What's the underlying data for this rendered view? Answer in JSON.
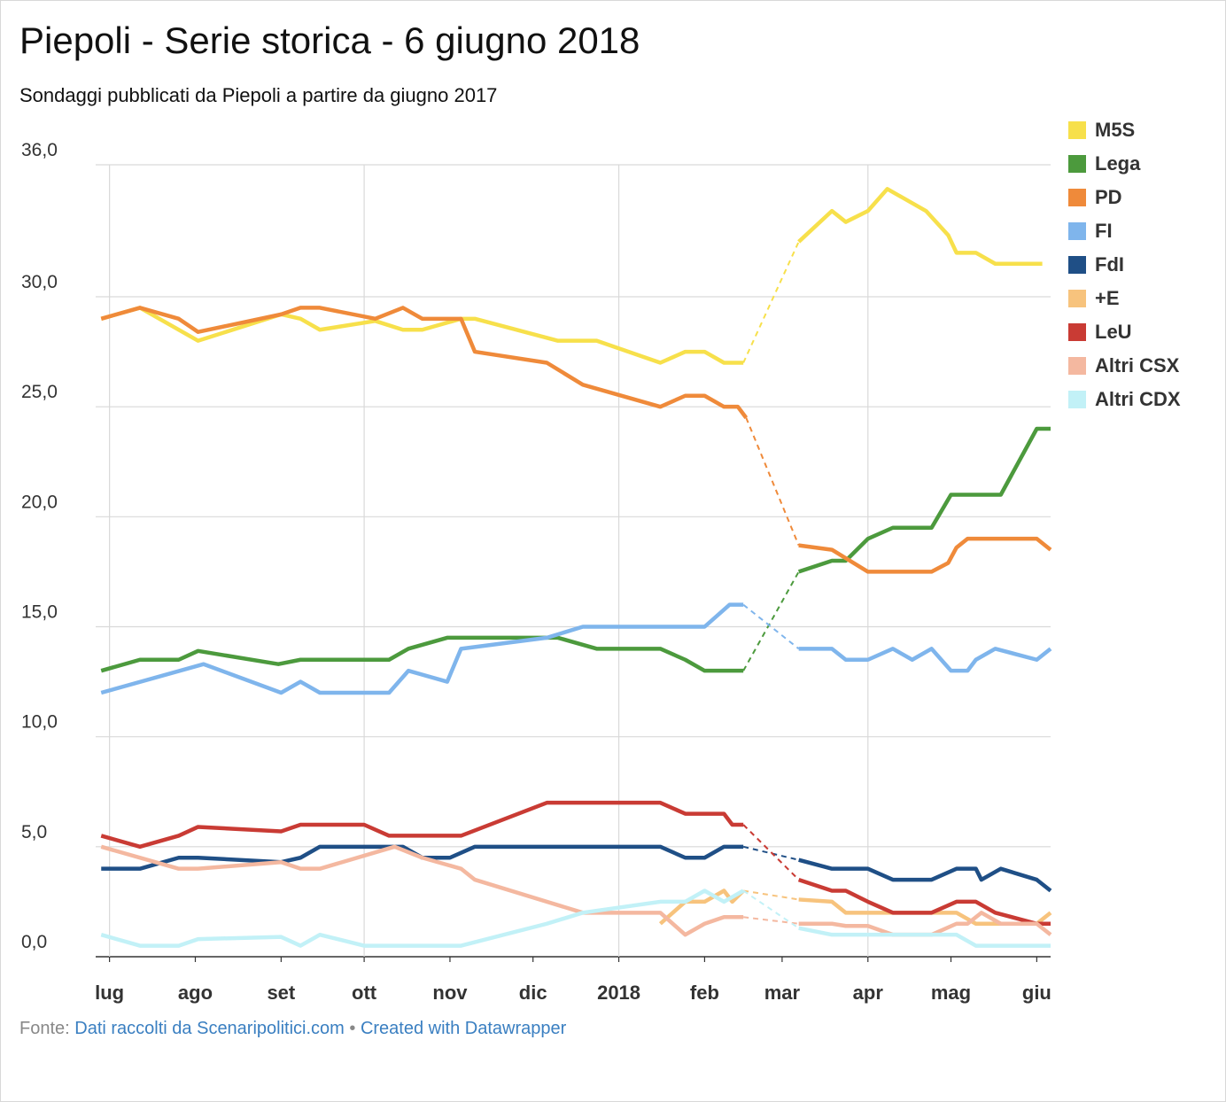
{
  "header": {
    "title": "Piepoli - Serie storica - 6 giugno 2018",
    "subtitle": "Sondaggi pubblicati da Piepoli a partire da giugno 2017"
  },
  "footer": {
    "prefix": "Fonte: ",
    "source": "Dati raccolti da Scenaripolitici.com",
    "separator": " • ",
    "credit": "Created with Datawrapper"
  },
  "chart_data": {
    "type": "line",
    "title": "Piepoli - Serie storica - 6 giugno 2018",
    "subtitle": "Sondaggi pubblicati da Piepoli a partire da giugno 2017",
    "xlabel": "",
    "ylabel": "",
    "ylim": [
      0,
      36
    ],
    "y_ticks": [
      {
        "value": 0,
        "label": "0,0"
      },
      {
        "value": 5,
        "label": "5,0"
      },
      {
        "value": 10,
        "label": "10,0"
      },
      {
        "value": 15,
        "label": "15,0"
      },
      {
        "value": 20,
        "label": "20,0"
      },
      {
        "value": 25,
        "label": "25,0"
      },
      {
        "value": 30,
        "label": "30,0"
      },
      {
        "value": 36,
        "label": "36,0"
      }
    ],
    "x_domain": [
      "2017-06-26",
      "2018-06-06"
    ],
    "x_ticks": [
      {
        "date": "2017-07-01",
        "label": "lug"
      },
      {
        "date": "2017-08-01",
        "label": "ago"
      },
      {
        "date": "2017-09-01",
        "label": "set"
      },
      {
        "date": "2017-10-01",
        "label": "ott"
      },
      {
        "date": "2017-11-01",
        "label": "nov"
      },
      {
        "date": "2017-12-01",
        "label": "dic"
      },
      {
        "date": "2018-01-01",
        "label": "2018"
      },
      {
        "date": "2018-02-01",
        "label": "feb"
      },
      {
        "date": "2018-03-01",
        "label": "mar"
      },
      {
        "date": "2018-04-01",
        "label": "apr"
      },
      {
        "date": "2018-05-01",
        "label": "mag"
      },
      {
        "date": "2018-06-01",
        "label": "giu"
      }
    ],
    "gap": {
      "from": "2018-02-16",
      "to": "2018-03-07",
      "style": "dashed"
    },
    "grid": true,
    "legend_position": "right",
    "series": [
      {
        "name": "M5S",
        "color": "#f7e04b",
        "points": [
          [
            "2017-06-28",
            29.0
          ],
          [
            "2017-07-12",
            29.5
          ],
          [
            "2017-08-02",
            28.0
          ],
          [
            "2017-09-01",
            29.2
          ],
          [
            "2017-09-08",
            29.0
          ],
          [
            "2017-09-15",
            28.5
          ],
          [
            "2017-10-05",
            28.9
          ],
          [
            "2017-10-15",
            28.5
          ],
          [
            "2017-10-22",
            28.5
          ],
          [
            "2017-11-05",
            29.0
          ],
          [
            "2017-11-10",
            29.0
          ],
          [
            "2017-12-10",
            28.0
          ],
          [
            "2017-12-24",
            28.0
          ],
          [
            "2018-01-16",
            27.0
          ],
          [
            "2018-01-25",
            27.5
          ],
          [
            "2018-02-01",
            27.5
          ],
          [
            "2018-02-08",
            27.0
          ],
          [
            "2018-02-15",
            27.0
          ],
          [
            "2018-03-07",
            32.5
          ],
          [
            "2018-03-19",
            33.9
          ],
          [
            "2018-03-24",
            33.4
          ],
          [
            "2018-04-01",
            33.9
          ],
          [
            "2018-04-08",
            34.9
          ],
          [
            "2018-04-22",
            33.9
          ],
          [
            "2018-04-30",
            32.8
          ],
          [
            "2018-05-03",
            32.0
          ],
          [
            "2018-05-10",
            32.0
          ],
          [
            "2018-05-17",
            31.5
          ],
          [
            "2018-06-03",
            31.5
          ]
        ]
      },
      {
        "name": "Lega",
        "color": "#4c9a3d",
        "points": [
          [
            "2017-06-28",
            13.0
          ],
          [
            "2017-07-12",
            13.5
          ],
          [
            "2017-07-26",
            13.5
          ],
          [
            "2017-08-02",
            13.9
          ],
          [
            "2017-08-31",
            13.3
          ],
          [
            "2017-09-08",
            13.5
          ],
          [
            "2017-09-29",
            13.5
          ],
          [
            "2017-10-10",
            13.5
          ],
          [
            "2017-10-17",
            14.0
          ],
          [
            "2017-10-31",
            14.5
          ],
          [
            "2017-12-10",
            14.5
          ],
          [
            "2017-12-24",
            14.0
          ],
          [
            "2018-01-16",
            14.0
          ],
          [
            "2018-01-25",
            13.5
          ],
          [
            "2018-02-01",
            13.0
          ],
          [
            "2018-02-15",
            13.0
          ],
          [
            "2018-03-07",
            17.5
          ],
          [
            "2018-03-19",
            18.0
          ],
          [
            "2018-03-24",
            18.0
          ],
          [
            "2018-04-01",
            19.0
          ],
          [
            "2018-04-10",
            19.5
          ],
          [
            "2018-04-24",
            19.5
          ],
          [
            "2018-05-01",
            21.0
          ],
          [
            "2018-05-19",
            21.0
          ],
          [
            "2018-06-01",
            24.0
          ],
          [
            "2018-06-06",
            24.0
          ]
        ]
      },
      {
        "name": "PD",
        "color": "#ef8a3a",
        "points": [
          [
            "2017-06-28",
            29.0
          ],
          [
            "2017-07-12",
            29.5
          ],
          [
            "2017-07-26",
            29.0
          ],
          [
            "2017-08-02",
            28.4
          ],
          [
            "2017-09-01",
            29.2
          ],
          [
            "2017-09-08",
            29.5
          ],
          [
            "2017-09-15",
            29.5
          ],
          [
            "2017-10-05",
            29.0
          ],
          [
            "2017-10-15",
            29.5
          ],
          [
            "2017-10-22",
            29.0
          ],
          [
            "2017-11-05",
            29.0
          ],
          [
            "2017-11-10",
            27.5
          ],
          [
            "2017-12-06",
            27.0
          ],
          [
            "2017-12-19",
            26.0
          ],
          [
            "2018-01-16",
            25.0
          ],
          [
            "2018-01-25",
            25.5
          ],
          [
            "2018-02-01",
            25.5
          ],
          [
            "2018-02-08",
            25.0
          ],
          [
            "2018-02-13",
            25.0
          ],
          [
            "2018-02-16",
            24.5
          ],
          [
            "2018-03-07",
            18.7
          ],
          [
            "2018-03-19",
            18.5
          ],
          [
            "2018-04-01",
            17.5
          ],
          [
            "2018-04-24",
            17.5
          ],
          [
            "2018-04-30",
            17.9
          ],
          [
            "2018-05-03",
            18.6
          ],
          [
            "2018-05-07",
            19.0
          ],
          [
            "2018-06-01",
            19.0
          ],
          [
            "2018-06-06",
            18.5
          ]
        ]
      },
      {
        "name": "FI",
        "color": "#7fb5ec",
        "points": [
          [
            "2017-06-28",
            12.0
          ],
          [
            "2017-08-04",
            13.3
          ],
          [
            "2017-09-01",
            12.0
          ],
          [
            "2017-09-08",
            12.5
          ],
          [
            "2017-09-15",
            12.0
          ],
          [
            "2017-10-10",
            12.0
          ],
          [
            "2017-10-17",
            13.0
          ],
          [
            "2017-10-31",
            12.5
          ],
          [
            "2017-11-05",
            14.0
          ],
          [
            "2017-12-06",
            14.5
          ],
          [
            "2017-12-19",
            15.0
          ],
          [
            "2018-02-01",
            15.0
          ],
          [
            "2018-02-10",
            16.0
          ],
          [
            "2018-02-15",
            16.0
          ],
          [
            "2018-03-07",
            14.0
          ],
          [
            "2018-03-19",
            14.0
          ],
          [
            "2018-03-24",
            13.5
          ],
          [
            "2018-04-01",
            13.5
          ],
          [
            "2018-04-10",
            14.0
          ],
          [
            "2018-04-17",
            13.5
          ],
          [
            "2018-04-24",
            14.0
          ],
          [
            "2018-05-01",
            13.0
          ],
          [
            "2018-05-07",
            13.0
          ],
          [
            "2018-05-10",
            13.5
          ],
          [
            "2018-05-17",
            14.0
          ],
          [
            "2018-06-01",
            13.5
          ],
          [
            "2018-06-06",
            14.0
          ]
        ]
      },
      {
        "name": "FdI",
        "color": "#1f4f86",
        "points": [
          [
            "2017-06-28",
            4.0
          ],
          [
            "2017-07-12",
            4.0
          ],
          [
            "2017-07-26",
            4.5
          ],
          [
            "2017-08-02",
            4.5
          ],
          [
            "2017-09-01",
            4.3
          ],
          [
            "2017-09-08",
            4.5
          ],
          [
            "2017-09-15",
            5.0
          ],
          [
            "2017-10-15",
            5.0
          ],
          [
            "2017-10-22",
            4.5
          ],
          [
            "2017-11-01",
            4.5
          ],
          [
            "2017-11-10",
            5.0
          ],
          [
            "2018-01-16",
            5.0
          ],
          [
            "2018-01-25",
            4.5
          ],
          [
            "2018-02-01",
            4.5
          ],
          [
            "2018-02-08",
            5.0
          ],
          [
            "2018-02-15",
            5.0
          ],
          [
            "2018-03-07",
            4.4
          ],
          [
            "2018-03-19",
            4.0
          ],
          [
            "2018-04-01",
            4.0
          ],
          [
            "2018-04-10",
            3.5
          ],
          [
            "2018-04-24",
            3.5
          ],
          [
            "2018-05-03",
            4.0
          ],
          [
            "2018-05-10",
            4.0
          ],
          [
            "2018-05-12",
            3.5
          ],
          [
            "2018-05-19",
            4.0
          ],
          [
            "2018-06-01",
            3.5
          ],
          [
            "2018-06-06",
            3.0
          ]
        ]
      },
      {
        "name": "+E",
        "color": "#f7c37d",
        "points": [
          [
            "2018-01-16",
            1.5
          ],
          [
            "2018-01-25",
            2.5
          ],
          [
            "2018-02-01",
            2.5
          ],
          [
            "2018-02-08",
            3.0
          ],
          [
            "2018-02-11",
            2.5
          ],
          [
            "2018-02-15",
            3.0
          ],
          [
            "2018-03-07",
            2.6
          ],
          [
            "2018-03-19",
            2.5
          ],
          [
            "2018-03-24",
            2.0
          ],
          [
            "2018-04-10",
            2.0
          ],
          [
            "2018-04-17",
            2.0
          ],
          [
            "2018-05-03",
            2.0
          ],
          [
            "2018-05-10",
            1.5
          ],
          [
            "2018-06-01",
            1.5
          ],
          [
            "2018-06-06",
            2.0
          ]
        ]
      },
      {
        "name": "LeU",
        "color": "#c93b34",
        "points": [
          [
            "2017-06-28",
            5.5
          ],
          [
            "2017-07-12",
            5.0
          ],
          [
            "2017-07-26",
            5.5
          ],
          [
            "2017-08-02",
            5.9
          ],
          [
            "2017-09-01",
            5.7
          ],
          [
            "2017-09-08",
            6.0
          ],
          [
            "2017-10-01",
            6.0
          ],
          [
            "2017-10-10",
            5.5
          ],
          [
            "2017-11-05",
            5.5
          ],
          [
            "2017-12-06",
            7.0
          ],
          [
            "2018-01-16",
            7.0
          ],
          [
            "2018-01-25",
            6.5
          ],
          [
            "2018-02-08",
            6.5
          ],
          [
            "2018-02-11",
            6.0
          ],
          [
            "2018-02-15",
            6.0
          ],
          [
            "2018-03-07",
            3.5
          ],
          [
            "2018-03-19",
            3.0
          ],
          [
            "2018-03-24",
            3.0
          ],
          [
            "2018-04-01",
            2.5
          ],
          [
            "2018-04-10",
            2.0
          ],
          [
            "2018-04-24",
            2.0
          ],
          [
            "2018-05-03",
            2.5
          ],
          [
            "2018-05-10",
            2.5
          ],
          [
            "2018-05-17",
            2.0
          ],
          [
            "2018-06-01",
            1.5
          ],
          [
            "2018-06-06",
            1.5
          ]
        ]
      },
      {
        "name": "Altri CSX",
        "color": "#f4b8a0",
        "points": [
          [
            "2017-06-28",
            5.0
          ],
          [
            "2017-07-26",
            4.0
          ],
          [
            "2017-08-02",
            4.0
          ],
          [
            "2017-09-01",
            4.3
          ],
          [
            "2017-09-08",
            4.0
          ],
          [
            "2017-09-15",
            4.0
          ],
          [
            "2017-10-12",
            5.0
          ],
          [
            "2017-10-22",
            4.5
          ],
          [
            "2017-11-05",
            4.0
          ],
          [
            "2017-11-10",
            3.5
          ],
          [
            "2017-12-19",
            2.0
          ],
          [
            "2018-01-16",
            2.0
          ],
          [
            "2018-01-25",
            1.0
          ],
          [
            "2018-02-01",
            1.5
          ],
          [
            "2018-02-08",
            1.8
          ],
          [
            "2018-02-15",
            1.8
          ],
          [
            "2018-03-07",
            1.5
          ],
          [
            "2018-03-19",
            1.5
          ],
          [
            "2018-03-24",
            1.4
          ],
          [
            "2018-04-01",
            1.4
          ],
          [
            "2018-04-10",
            1.0
          ],
          [
            "2018-04-24",
            1.0
          ],
          [
            "2018-05-03",
            1.5
          ],
          [
            "2018-05-07",
            1.5
          ],
          [
            "2018-05-12",
            2.0
          ],
          [
            "2018-05-19",
            1.5
          ],
          [
            "2018-06-01",
            1.5
          ],
          [
            "2018-06-06",
            1.0
          ]
        ]
      },
      {
        "name": "Altri CDX",
        "color": "#c2f1f7",
        "points": [
          [
            "2017-06-28",
            1.0
          ],
          [
            "2017-07-12",
            0.5
          ],
          [
            "2017-07-26",
            0.5
          ],
          [
            "2017-08-02",
            0.8
          ],
          [
            "2017-09-01",
            0.9
          ],
          [
            "2017-09-08",
            0.5
          ],
          [
            "2017-09-15",
            1.0
          ],
          [
            "2017-10-01",
            0.5
          ],
          [
            "2017-11-05",
            0.5
          ],
          [
            "2017-12-06",
            1.5
          ],
          [
            "2017-12-19",
            2.0
          ],
          [
            "2018-01-16",
            2.5
          ],
          [
            "2018-01-25",
            2.5
          ],
          [
            "2018-02-01",
            3.0
          ],
          [
            "2018-02-08",
            2.5
          ],
          [
            "2018-02-15",
            3.0
          ],
          [
            "2018-03-07",
            1.3
          ],
          [
            "2018-03-19",
            1.0
          ],
          [
            "2018-04-01",
            1.0
          ],
          [
            "2018-04-10",
            1.0
          ],
          [
            "2018-05-03",
            1.0
          ],
          [
            "2018-05-10",
            0.5
          ],
          [
            "2018-06-06",
            0.5
          ]
        ]
      }
    ]
  }
}
